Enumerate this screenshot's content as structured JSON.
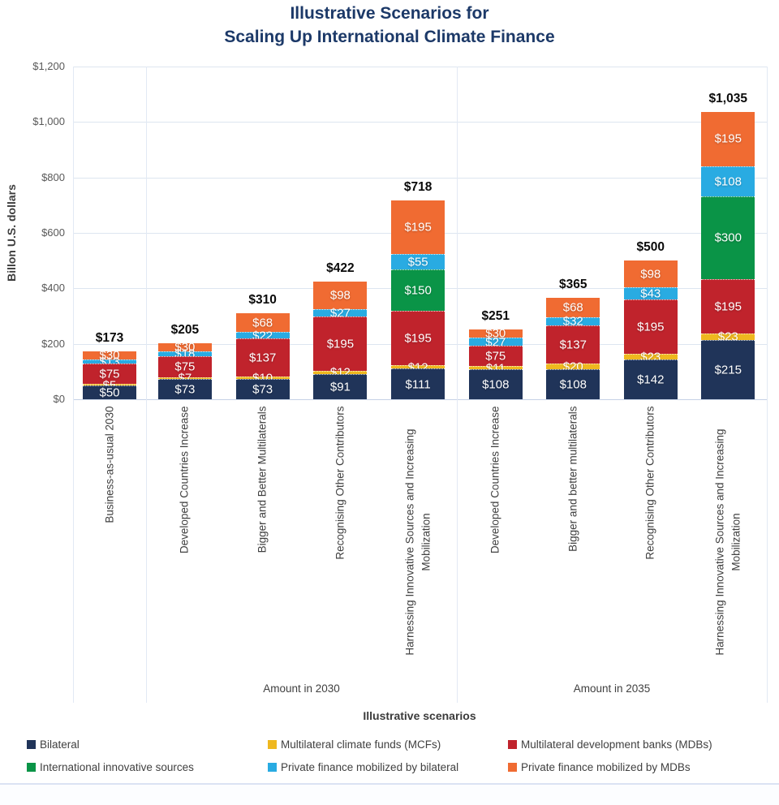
{
  "title": {
    "line1": "Illustrative Scenarios for",
    "line2": "Scaling Up International Climate Finance"
  },
  "y_axis": {
    "title": "Billon U.S. dollars",
    "ticks": [
      {
        "value": 1200,
        "label": "$1,200"
      },
      {
        "value": 1000,
        "label": "$1,000"
      },
      {
        "value": 800,
        "label": "$800"
      },
      {
        "value": 600,
        "label": "$600"
      },
      {
        "value": 400,
        "label": "$400"
      },
      {
        "value": 200,
        "label": "$200"
      },
      {
        "value": 0,
        "label": "$0"
      }
    ]
  },
  "x_axis": {
    "title": "Illustrative scenarios"
  },
  "colors": {
    "bilateral": "#203459",
    "mcf": "#EFB81F",
    "mdb": "#C0232C",
    "innovative": "#0A9447",
    "private_bilateral": "#29ABE2",
    "private_mdb": "#F06B32",
    "title_navy": "#1C3968",
    "grid": "#dde5f0"
  },
  "chart_data": {
    "type": "bar",
    "stacked": true,
    "title": "Illustrative Scenarios for Scaling Up International Climate Finance",
    "xlabel": "Illustrative scenarios",
    "ylabel": "Billon U.S. dollars",
    "ylim": [
      0,
      1200
    ],
    "grid": true,
    "legend_position": "bottom",
    "categories": [
      {
        "label": "Business-as-usual 2030",
        "total_label": "$173"
      },
      {
        "label": "Developed Countries Increase",
        "total_label": "$205"
      },
      {
        "label": "Bigger and Better Multilaterals",
        "total_label": "$310"
      },
      {
        "label": "Recognising Other Contributors",
        "total_label": "$422"
      },
      {
        "label": "Harnessing Innovative Sources and Increasing Mobilization",
        "total_label": "$718"
      },
      {
        "label": "Developed Countries Increase",
        "total_label": "$251"
      },
      {
        "label": "Bigger and better multilaterals",
        "total_label": "$365"
      },
      {
        "label": "Recognising Other Contributors",
        "total_label": "$500"
      },
      {
        "label": "Harnessing Innovative Sources and Increasing Mobilization",
        "total_label": "$1,035"
      }
    ],
    "groups": [
      {
        "label": "Amount in 2030",
        "from": 1,
        "to": 4
      },
      {
        "label": "Amount in 2035",
        "from": 5,
        "to": 8
      }
    ],
    "series": [
      {
        "key": "bilateral",
        "name": "Bilateral",
        "color": "#203459",
        "values": [
          50,
          73,
          73,
          91,
          111,
          108,
          108,
          142,
          215
        ]
      },
      {
        "key": "mcf",
        "name": "Multilateral climate funds (MCFs)",
        "color": "#EFB81F",
        "values": [
          5,
          7,
          10,
          12,
          12,
          11,
          20,
          23,
          23
        ]
      },
      {
        "key": "mdb",
        "name": "Multilateral development banks (MDBs)",
        "color": "#C0232C",
        "values": [
          75,
          75,
          137,
          195,
          195,
          75,
          137,
          195,
          195
        ]
      },
      {
        "key": "innovative",
        "name": "International innovative sources",
        "color": "#0A9447",
        "values": [
          0,
          0,
          0,
          0,
          150,
          0,
          0,
          0,
          300
        ]
      },
      {
        "key": "private_bilateral",
        "name": "Private finance mobilized by bilateral",
        "color": "#29ABE2",
        "values": [
          13,
          18,
          22,
          27,
          55,
          27,
          32,
          43,
          108
        ]
      },
      {
        "key": "private_mdb",
        "name": "Private finance mobilized by MDBs",
        "color": "#F06B32",
        "values": [
          30,
          30,
          68,
          98,
          195,
          30,
          68,
          98,
          195
        ]
      }
    ],
    "legend_rows": [
      [
        "bilateral",
        "mcf",
        "mdb"
      ],
      [
        "innovative",
        "private_bilateral",
        "private_mdb"
      ]
    ]
  }
}
